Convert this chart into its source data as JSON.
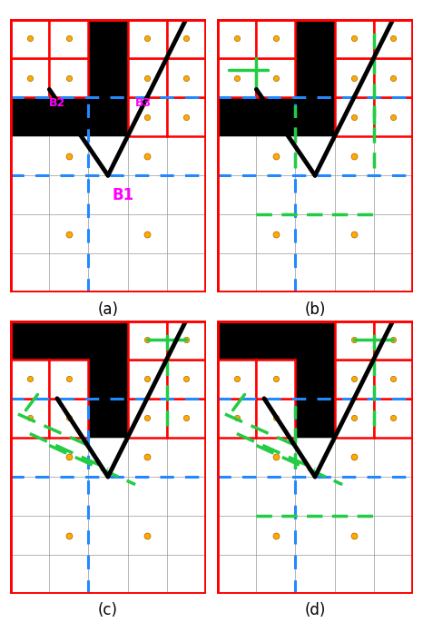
{
  "fig_width": 4.66,
  "fig_height": 6.96,
  "red": "#ff0000",
  "black": "#000000",
  "blue": "#2288ff",
  "green": "#22cc44",
  "gray": "#999999",
  "yellow": "#ffaa00",
  "magenta": "#ff00ff",
  "white": "#ffffff",
  "subplot_labels": [
    "(a)",
    "(b)",
    "(c)",
    "(d)"
  ],
  "ncols": 5,
  "nrows": 7
}
